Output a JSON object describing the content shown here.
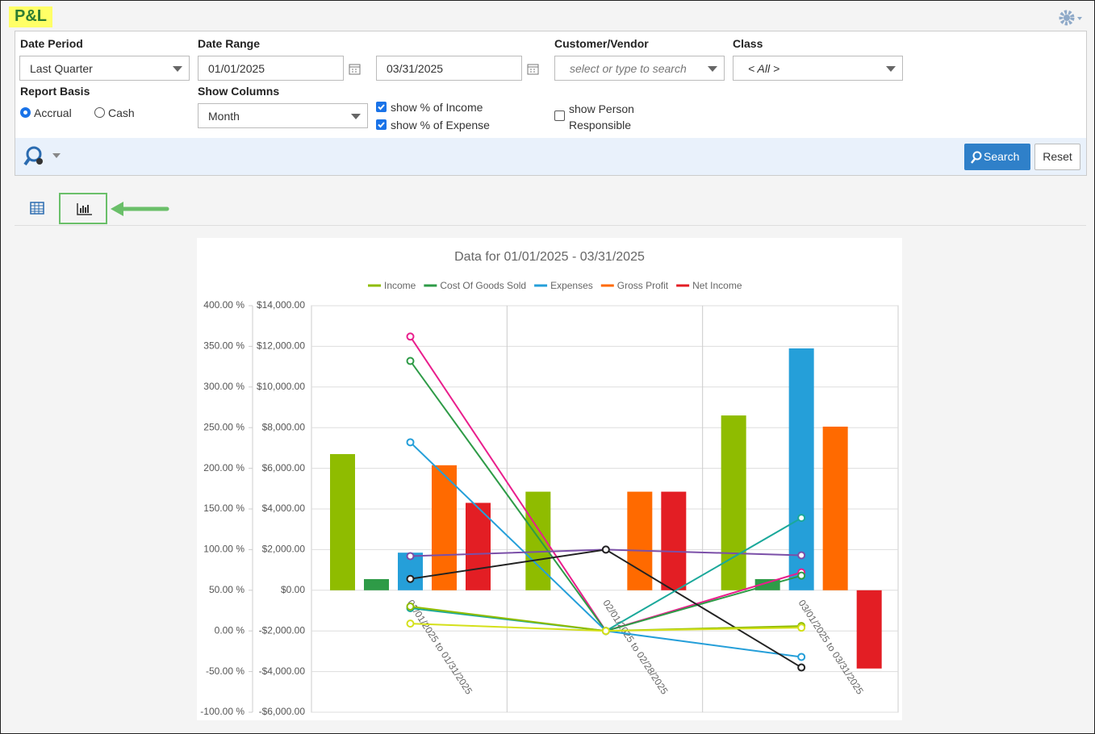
{
  "header": {
    "title": "P&L"
  },
  "filters": {
    "date_period": {
      "label": "Date Period",
      "value": "Last Quarter"
    },
    "date_range": {
      "label": "Date Range",
      "start": "01/01/2025",
      "end": "03/31/2025"
    },
    "customer_vendor": {
      "label": "Customer/Vendor",
      "placeholder": "select or type to search"
    },
    "class": {
      "label": "Class",
      "value": "< All >"
    },
    "report_basis": {
      "label": "Report Basis",
      "options": [
        "Accrual",
        "Cash"
      ],
      "selected": 0
    },
    "show_columns": {
      "label": "Show Columns",
      "value": "Month"
    },
    "checkboxes": [
      {
        "label": "show % of Income",
        "checked": true
      },
      {
        "label": "show % of Expense",
        "checked": true
      }
    ],
    "person": {
      "label": "show Person Responsible",
      "checked": false
    }
  },
  "buttons": {
    "search": "Search",
    "reset": "Reset"
  },
  "chart_data": {
    "type": "bar",
    "title": "Data for 01/01/2025 - 03/31/2025",
    "categories": [
      "01/01/2025 to 01/31/2025",
      "02/01/2025 to 02/28/2025",
      "03/01/2025 to 03/31/2025"
    ],
    "series": [
      {
        "name": "Income",
        "color": "#8fbc00",
        "values": [
          6700,
          4850,
          8600
        ]
      },
      {
        "name": "Cost Of Goods Sold",
        "color": "#2e9b47",
        "values": [
          550,
          0,
          550
        ]
      },
      {
        "name": "Expenses",
        "color": "#259fd9",
        "values": [
          1850,
          0,
          11900
        ]
      },
      {
        "name": "Gross Profit",
        "color": "#ff6a00",
        "values": [
          6150,
          4850,
          8050
        ]
      },
      {
        "name": "Net Income",
        "color": "#e31e24",
        "values": [
          4300,
          4850,
          -3850
        ]
      },
      {
        "type": "line",
        "axis": "y2",
        "color": "#e91e8c",
        "values": [
          362,
          0,
          72
        ]
      },
      {
        "type": "line",
        "axis": "y2",
        "color": "#2e9b47",
        "values": [
          332,
          0,
          68
        ]
      },
      {
        "type": "line",
        "axis": "y2",
        "color": "#259fd9",
        "values": [
          232,
          0,
          -32
        ]
      },
      {
        "type": "line",
        "axis": "y2",
        "color": "#7b4fa8",
        "values": [
          92,
          100,
          93
        ]
      },
      {
        "type": "line",
        "axis": "y2",
        "color": "#222222",
        "values": [
          64,
          100,
          -45
        ]
      },
      {
        "type": "line",
        "axis": "y2",
        "color": "#1aa89a",
        "values": [
          28,
          0,
          139
        ]
      },
      {
        "type": "line",
        "axis": "y2",
        "color": "#8fbc00",
        "values": [
          30,
          0,
          6
        ]
      },
      {
        "type": "line",
        "axis": "y2",
        "color": "#d4e01a",
        "values": [
          9,
          0,
          4
        ]
      }
    ],
    "ylim": [
      -6000,
      14000
    ],
    "yticks": [
      {
        "value": -6000,
        "label": "-$6,000.00"
      },
      {
        "value": -4000,
        "label": "-$4,000.00"
      },
      {
        "value": -2000,
        "label": "-$2,000.00"
      },
      {
        "value": 0,
        "label": "$0.00"
      },
      {
        "value": 2000,
        "label": "$2,000.00"
      },
      {
        "value": 4000,
        "label": "$4,000.00"
      },
      {
        "value": 6000,
        "label": "$6,000.00"
      },
      {
        "value": 8000,
        "label": "$8,000.00"
      },
      {
        "value": 10000,
        "label": "$10,000.00"
      },
      {
        "value": 12000,
        "label": "$12,000.00"
      },
      {
        "value": 14000,
        "label": "$14,000.00"
      }
    ],
    "y2lim": [
      -100,
      400
    ],
    "y2ticks": [
      {
        "value": -100,
        "label": "-100.00 %"
      },
      {
        "value": -50,
        "label": "-50.00 %"
      },
      {
        "value": 0,
        "label": "0.00 %"
      },
      {
        "value": 50,
        "label": "50.00 %"
      },
      {
        "value": 100,
        "label": "100.00 %"
      },
      {
        "value": 150,
        "label": "150.00 %"
      },
      {
        "value": 200,
        "label": "200.00 %"
      },
      {
        "value": 250,
        "label": "250.00 %"
      },
      {
        "value": 300,
        "label": "300.00 %"
      },
      {
        "value": 350,
        "label": "350.00 %"
      },
      {
        "value": 400,
        "label": "400.00 %"
      }
    ],
    "grid": true,
    "legend": "top"
  }
}
